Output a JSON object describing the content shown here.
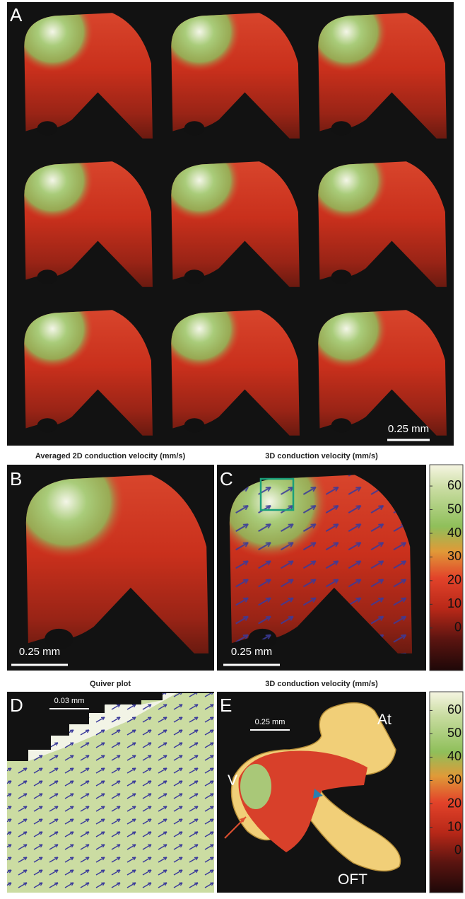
{
  "panels": {
    "A": {
      "label": "A",
      "scale_bar": "0.25 mm"
    },
    "B": {
      "title": "Averaged 2D conduction velocity (mm/s)",
      "label": "B",
      "scale_bar": "0.25 mm"
    },
    "C": {
      "title": "3D conduction velocity (mm/s)",
      "label": "C",
      "scale_bar": "0.25 mm",
      "colorbar": {
        "range": [
          -18,
          69
        ],
        "ticks": [
          60,
          50,
          40,
          30,
          20,
          10,
          0
        ]
      }
    },
    "D": {
      "title": "Quiver plot",
      "label": "D",
      "scale_bar": "0.03 mm"
    },
    "E": {
      "title": "3D conduction velocity (mm/s)",
      "label": "E",
      "scale_bar": "0.25 mm",
      "annotations": [
        "At",
        "V",
        "OFT"
      ],
      "colorbar": {
        "range": [
          -18,
          68
        ],
        "ticks": [
          60,
          50,
          40,
          30,
          20,
          10,
          0
        ]
      }
    }
  }
}
